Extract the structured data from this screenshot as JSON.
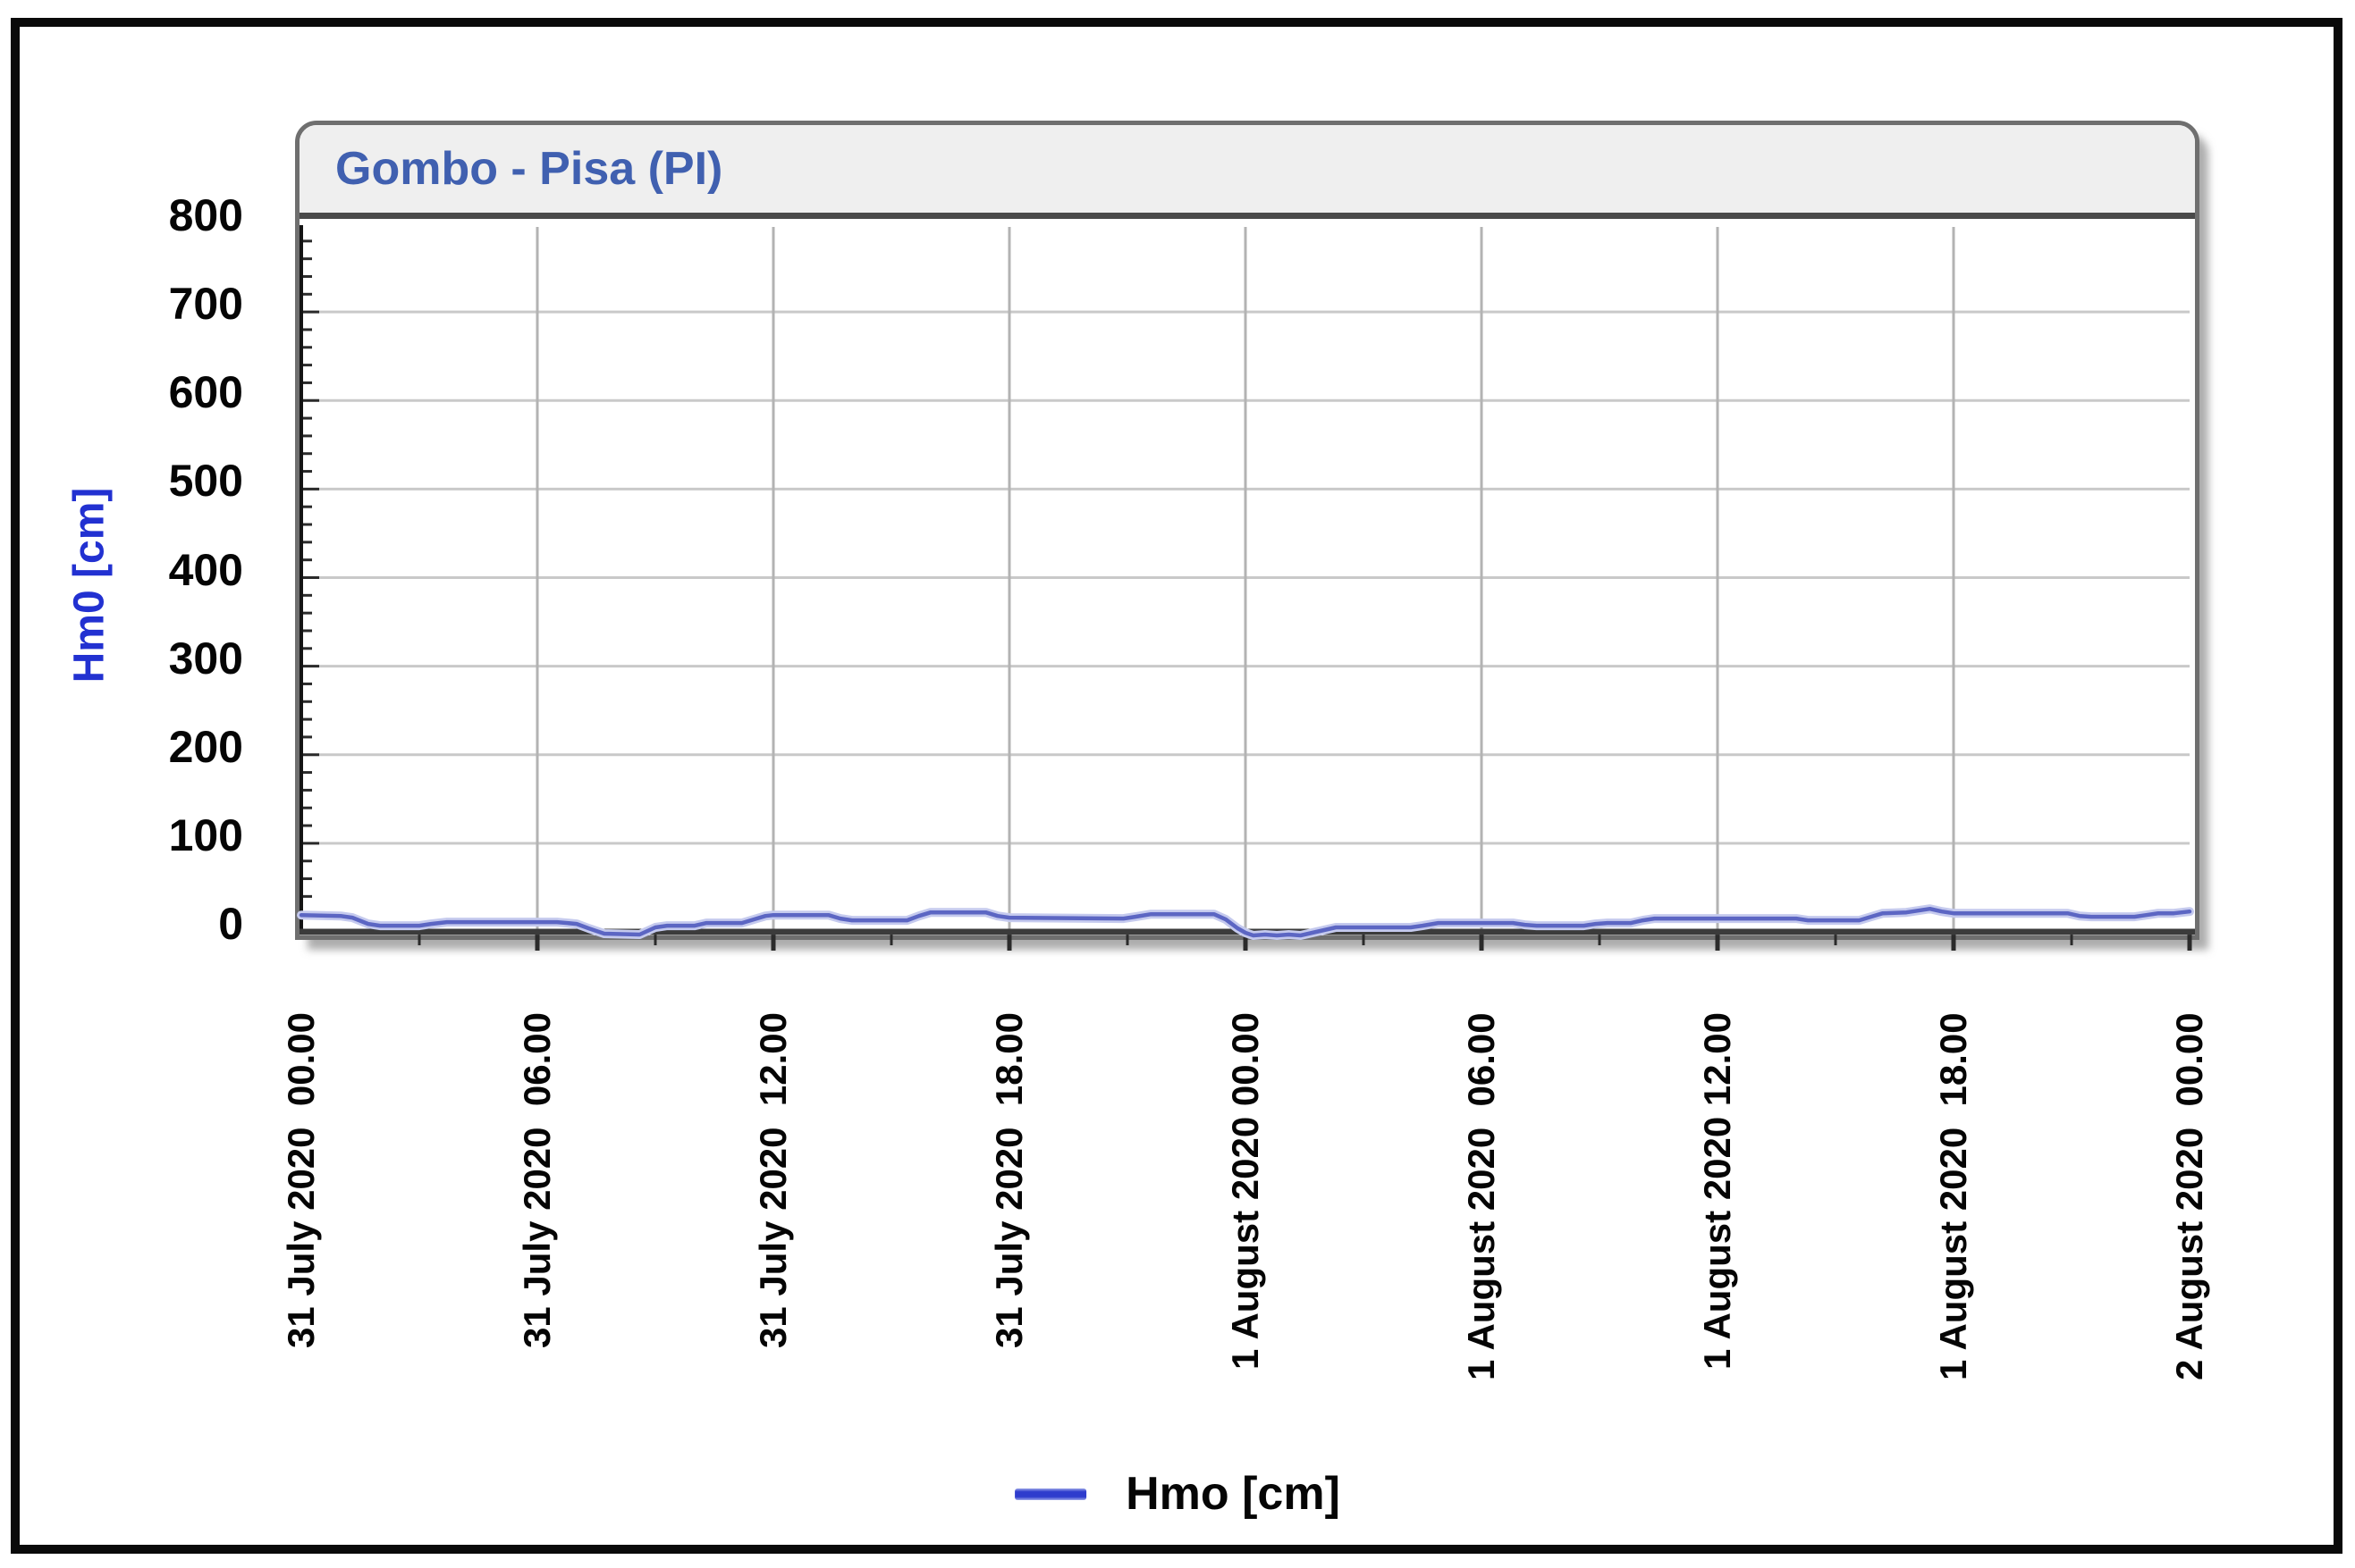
{
  "window": {
    "background_color": "#ffffff",
    "frame_color": "#0a0a0a"
  },
  "panel": {
    "title": "Gombo - Pisa (PI)",
    "title_color": "#4060b0",
    "titlebar_bg": "#efefef",
    "border_color": "#6f6f6f"
  },
  "y_axis": {
    "title": "Hm0 [cm]",
    "title_color": "#2231d1",
    "tick_labels": [
      "800",
      "700",
      "600",
      "500",
      "400",
      "300",
      "200",
      "100",
      "0"
    ],
    "min": 0,
    "max": 800,
    "major_step": 100,
    "minor_step": 20
  },
  "x_axis": {
    "labels": [
      "31 July 2020  00.00",
      "31 July 2020  06.00",
      "31 July 2020  12.00",
      "31 July 2020  18.00",
      "1 August 2020 00.00",
      "1 August 2020  06.00",
      "1 August 2020 12.00",
      "1 August 2020  18.00",
      "2 August 2020  00.00"
    ],
    "major_step_hours": 6,
    "minor_tick_hours": 3,
    "span_hours": 48
  },
  "legend": {
    "label": "Hmo [cm]",
    "line_color": "#2e3ccd"
  },
  "chart_data": {
    "type": "line",
    "title": "Gombo - Pisa (PI)",
    "ylabel": "Hm0 [cm]",
    "ylim": [
      0,
      800
    ],
    "x_unit": "hours since 31 July 2020 00.00",
    "x_range": [
      0,
      48
    ],
    "grid": true,
    "legend_position": "bottom-center",
    "series": [
      {
        "name": "Hmo [cm]",
        "color": "#5c66c3",
        "halo_color": "#c5caee",
        "points": [
          [
            0,
            19
          ],
          [
            1,
            18
          ],
          [
            1.3,
            16
          ],
          [
            1.7,
            9
          ],
          [
            2,
            7
          ],
          [
            3,
            7
          ],
          [
            3.3,
            9
          ],
          [
            3.7,
            11
          ],
          [
            6.5,
            11
          ],
          [
            7,
            9
          ],
          [
            7.3,
            4
          ],
          [
            7.7,
            -2
          ],
          [
            8.6,
            -3
          ],
          [
            9,
            5
          ],
          [
            9.3,
            7
          ],
          [
            10,
            7
          ],
          [
            10.3,
            10
          ],
          [
            11.2,
            10
          ],
          [
            11.5,
            14
          ],
          [
            11.8,
            18
          ],
          [
            12,
            19
          ],
          [
            13.4,
            19
          ],
          [
            13.7,
            15
          ],
          [
            14,
            13
          ],
          [
            15.4,
            13
          ],
          [
            15.7,
            18
          ],
          [
            16,
            22
          ],
          [
            17.4,
            22
          ],
          [
            17.7,
            18
          ],
          [
            18,
            16
          ],
          [
            20.9,
            15
          ],
          [
            21.2,
            17
          ],
          [
            21.6,
            20
          ],
          [
            23.2,
            20
          ],
          [
            23.5,
            14
          ],
          [
            23.8,
            4
          ],
          [
            24,
            -1
          ],
          [
            24.2,
            -4
          ],
          [
            24.5,
            -3
          ],
          [
            24.8,
            -4
          ],
          [
            25.1,
            -3
          ],
          [
            25.4,
            -4
          ],
          [
            25.7,
            -1
          ],
          [
            26,
            2
          ],
          [
            26.3,
            5
          ],
          [
            28.2,
            5
          ],
          [
            28.5,
            7
          ],
          [
            28.9,
            10
          ],
          [
            30.8,
            10
          ],
          [
            31.1,
            8
          ],
          [
            31.4,
            7
          ],
          [
            32.6,
            7
          ],
          [
            32.9,
            9
          ],
          [
            33.2,
            10
          ],
          [
            33.8,
            10
          ],
          [
            34.1,
            13
          ],
          [
            34.4,
            15
          ],
          [
            38,
            15
          ],
          [
            38.3,
            13
          ],
          [
            39.6,
            13
          ],
          [
            39.9,
            17
          ],
          [
            40.2,
            21
          ],
          [
            40.8,
            22
          ],
          [
            41.1,
            24
          ],
          [
            41.4,
            26
          ],
          [
            41.7,
            23
          ],
          [
            42,
            21
          ],
          [
            44.9,
            21
          ],
          [
            45.2,
            18
          ],
          [
            45.5,
            17
          ],
          [
            46.6,
            17
          ],
          [
            46.9,
            19
          ],
          [
            47.2,
            21
          ],
          [
            47.6,
            21
          ],
          [
            48,
            23
          ]
        ]
      }
    ]
  }
}
